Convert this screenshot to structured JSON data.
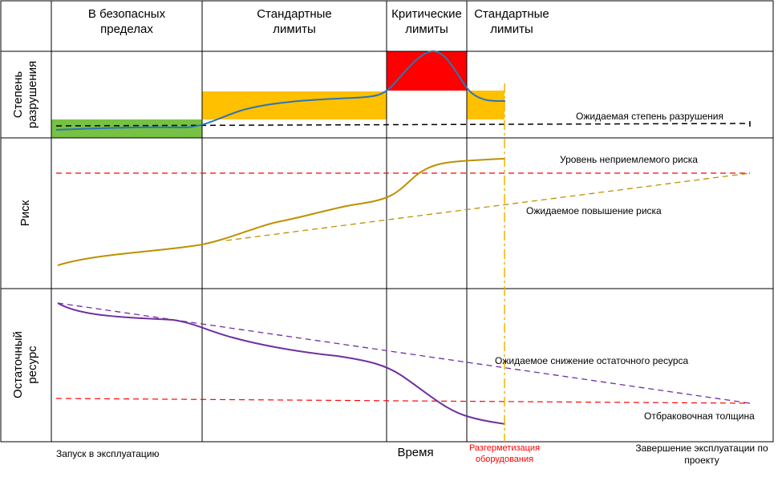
{
  "headers": [
    {
      "line1": "В безопасных",
      "line2": "пределах"
    },
    {
      "line1": "Стандартные",
      "line2": "лимиты"
    },
    {
      "line1": "Критические",
      "line2": "лимиты"
    },
    {
      "line1": "Стандартные",
      "line2": "лимиты"
    }
  ],
  "rows": {
    "damage": {
      "line1": "Степень",
      "line2": "разрушения"
    },
    "risk": "Риск",
    "life": {
      "line1": "Остаточный",
      "line2": "ресурс"
    }
  },
  "annotations": {
    "expected_damage": "Ожидаемая степень разрушения",
    "unacceptable_risk": "Уровень неприемлемого риска",
    "expected_risk_increase": "Ожидаемое повышение риска",
    "expected_life_decrease": "Ожидаемое снижение остаточного ресурса",
    "rejection_thickness": "Отбраковочная толщина"
  },
  "footer": {
    "start": "Запуск в эксплуатацию",
    "time_axis": "Время",
    "depressurization_line1": "Разгерметизация",
    "depressurization_line2": "оборудования",
    "end_line1": "Завершение эксплуатации по",
    "end_line2": "проекту"
  },
  "colors": {
    "safe_zone": "#77c143",
    "standard_zone": "#ffc000",
    "critical_zone": "#ff0000",
    "damage_curve": "#2e75b6",
    "risk_curve": "#bf9000",
    "life_curve": "#7030a0",
    "threshold_line": "#ff0000",
    "event_line": "#f0b400",
    "depressurization_text": "#ff0000"
  }
}
